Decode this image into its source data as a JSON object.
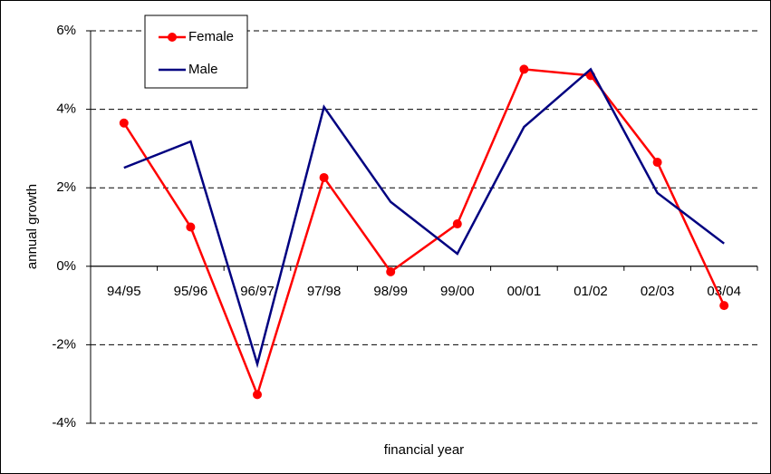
{
  "chart_data": {
    "type": "line",
    "y_label": "annual growth",
    "x_label": "financial year",
    "categories": [
      "94/95",
      "95/96",
      "96/97",
      "97/98",
      "98/99",
      "99/00",
      "00/01",
      "01/02",
      "02/03",
      "03/04"
    ],
    "series": [
      {
        "name": "Female",
        "color": "#ff0000",
        "marker": true,
        "values": [
          3.65,
          1.0,
          -3.27,
          2.26,
          -0.14,
          1.08,
          5.02,
          4.86,
          2.65,
          -1.0
        ]
      },
      {
        "name": "Male",
        "color": "#000080",
        "marker": false,
        "values": [
          2.51,
          3.18,
          -2.49,
          4.06,
          1.64,
          0.32,
          3.55,
          5.02,
          1.87,
          0.58
        ]
      }
    ],
    "ylim": [
      -4,
      6
    ],
    "yticks": [
      {
        "value": -4,
        "label": "-4%"
      },
      {
        "value": -2,
        "label": "-2%"
      },
      {
        "value": 0,
        "label": "0%"
      },
      {
        "value": 2,
        "label": "2%"
      },
      {
        "value": 4,
        "label": "4%"
      },
      {
        "value": 6,
        "label": "6%"
      }
    ],
    "grid": true,
    "legend": "upper left"
  }
}
